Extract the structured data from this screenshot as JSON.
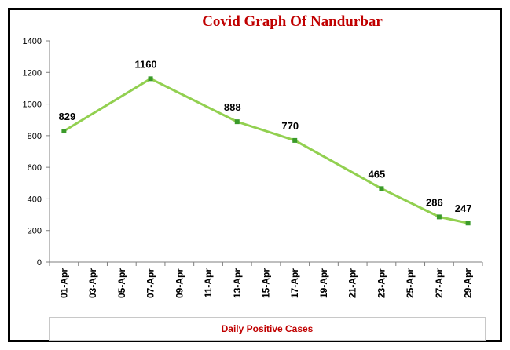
{
  "colors": {
    "title": "#c00000",
    "line": "#92d050",
    "marker": "#3a9a2a",
    "axis": "#7f7f7f",
    "legend_text": "#c00000"
  },
  "chart_data": {
    "type": "line",
    "title": "Covid Graph  Of Nandurbar",
    "xlabel": "",
    "ylabel": "",
    "ylim": [
      0,
      1400
    ],
    "y_ticks": [
      "0",
      "200",
      "400",
      "600",
      "800",
      "1000",
      "1200",
      "1400"
    ],
    "grid": false,
    "categories": [
      "01-Apr",
      "03-Apr",
      "05-Apr",
      "07-Apr",
      "09-Apr",
      "11-Apr",
      "13-Apr",
      "15-Apr",
      "17-Apr",
      "19-Apr",
      "21-Apr",
      "23-Apr",
      "25-Apr",
      "27-Apr",
      "29-Apr"
    ],
    "points": [
      {
        "x": "01-Apr",
        "y": 829
      },
      {
        "x": "07-Apr",
        "y": 1160
      },
      {
        "x": "13-Apr",
        "y": 888
      },
      {
        "x": "17-Apr",
        "y": 770
      },
      {
        "x": "23-Apr",
        "y": 465
      },
      {
        "x": "27-Apr",
        "y": 286
      },
      {
        "x": "29-Apr",
        "y": 247
      }
    ],
    "data_labels": [
      "829",
      "1160",
      "888",
      "770",
      "465",
      "286",
      "247"
    ],
    "legend": {
      "label": "Daily Positive Cases",
      "placement": "bottom"
    }
  }
}
